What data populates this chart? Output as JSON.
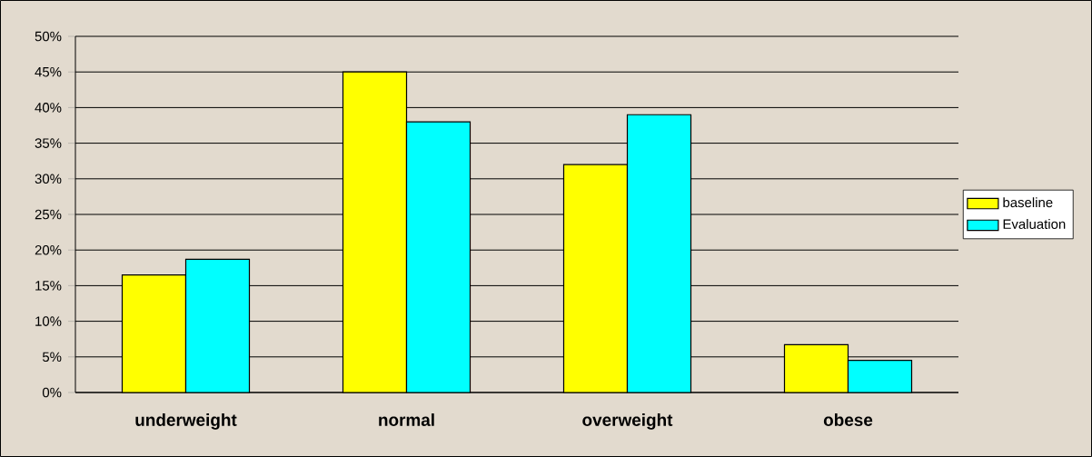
{
  "chart_data": {
    "type": "bar",
    "categories": [
      "underweight",
      "normal",
      "overweight",
      "obese"
    ],
    "series": [
      {
        "name": "baseline",
        "color": "#ffff00",
        "values": [
          16.5,
          45,
          32,
          6.7
        ]
      },
      {
        "name": "Evaluation",
        "color": "#00ffff",
        "values": [
          18.7,
          38,
          39,
          4.5
        ]
      }
    ],
    "ylim": [
      0,
      50
    ],
    "yticks": [
      {
        "value": 0,
        "label": "0%"
      },
      {
        "value": 5,
        "label": "5%"
      },
      {
        "value": 10,
        "label": "10%"
      },
      {
        "value": 15,
        "label": "15%"
      },
      {
        "value": 20,
        "label": "20%"
      },
      {
        "value": 25,
        "label": "25%"
      },
      {
        "value": 30,
        "label": "30%"
      },
      {
        "value": 35,
        "label": "35%"
      },
      {
        "value": 40,
        "label": "40%"
      },
      {
        "value": 45,
        "label": "45%"
      },
      {
        "value": 50,
        "label": "50%"
      }
    ],
    "grid": "y",
    "legend": "right"
  }
}
